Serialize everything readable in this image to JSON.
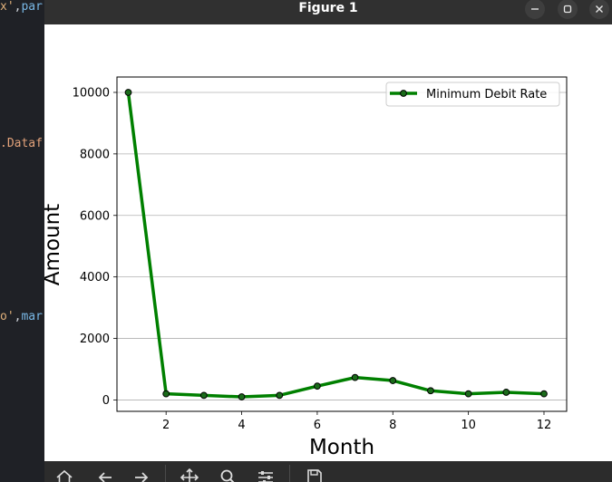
{
  "editor": {
    "lines": [
      {
        "parts": [
          {
            "t": "x'",
            "c": "c-str"
          },
          {
            "t": ",",
            "c": "c-punct"
          },
          {
            "t": "par",
            "c": "c-id"
          }
        ]
      },
      {
        "parts": [
          {
            "t": ".Dataf",
            "c": "c-obj"
          }
        ]
      },
      {
        "parts": [
          {
            "t": "o'",
            "c": "c-str"
          },
          {
            "t": ",",
            "c": "c-punct"
          },
          {
            "t": "mar",
            "c": "c-id"
          }
        ]
      }
    ]
  },
  "window": {
    "title": "Figure 1",
    "controls": [
      "minimize-icon",
      "maximize-icon",
      "close-icon"
    ]
  },
  "toolbar": {
    "tools": [
      "home-icon",
      "back-icon",
      "forward-icon",
      "pan-icon",
      "zoom-icon",
      "configure-subplots-icon",
      "save-icon"
    ]
  },
  "chart_data": {
    "type": "line",
    "title": "",
    "xlabel": "Month",
    "ylabel": "Amount",
    "x": [
      1,
      2,
      3,
      4,
      5,
      6,
      7,
      8,
      9,
      10,
      11,
      12
    ],
    "series": [
      {
        "name": "Minimum Debit Rate",
        "values": [
          10000,
          200,
          150,
          100,
          150,
          450,
          730,
          630,
          300,
          200,
          250,
          200
        ],
        "color": "#008000",
        "marker": "circle",
        "marker_face": "#1a6b1a",
        "marker_edge": "#000000"
      }
    ],
    "xlim": [
      0.7,
      12.6
    ],
    "ylim": [
      -370,
      10500
    ],
    "xticks": [
      2,
      4,
      6,
      8,
      10,
      12
    ],
    "yticks": [
      0,
      2000,
      4000,
      6000,
      8000,
      10000
    ],
    "grid": "horizontal",
    "legend": "upper-right"
  }
}
